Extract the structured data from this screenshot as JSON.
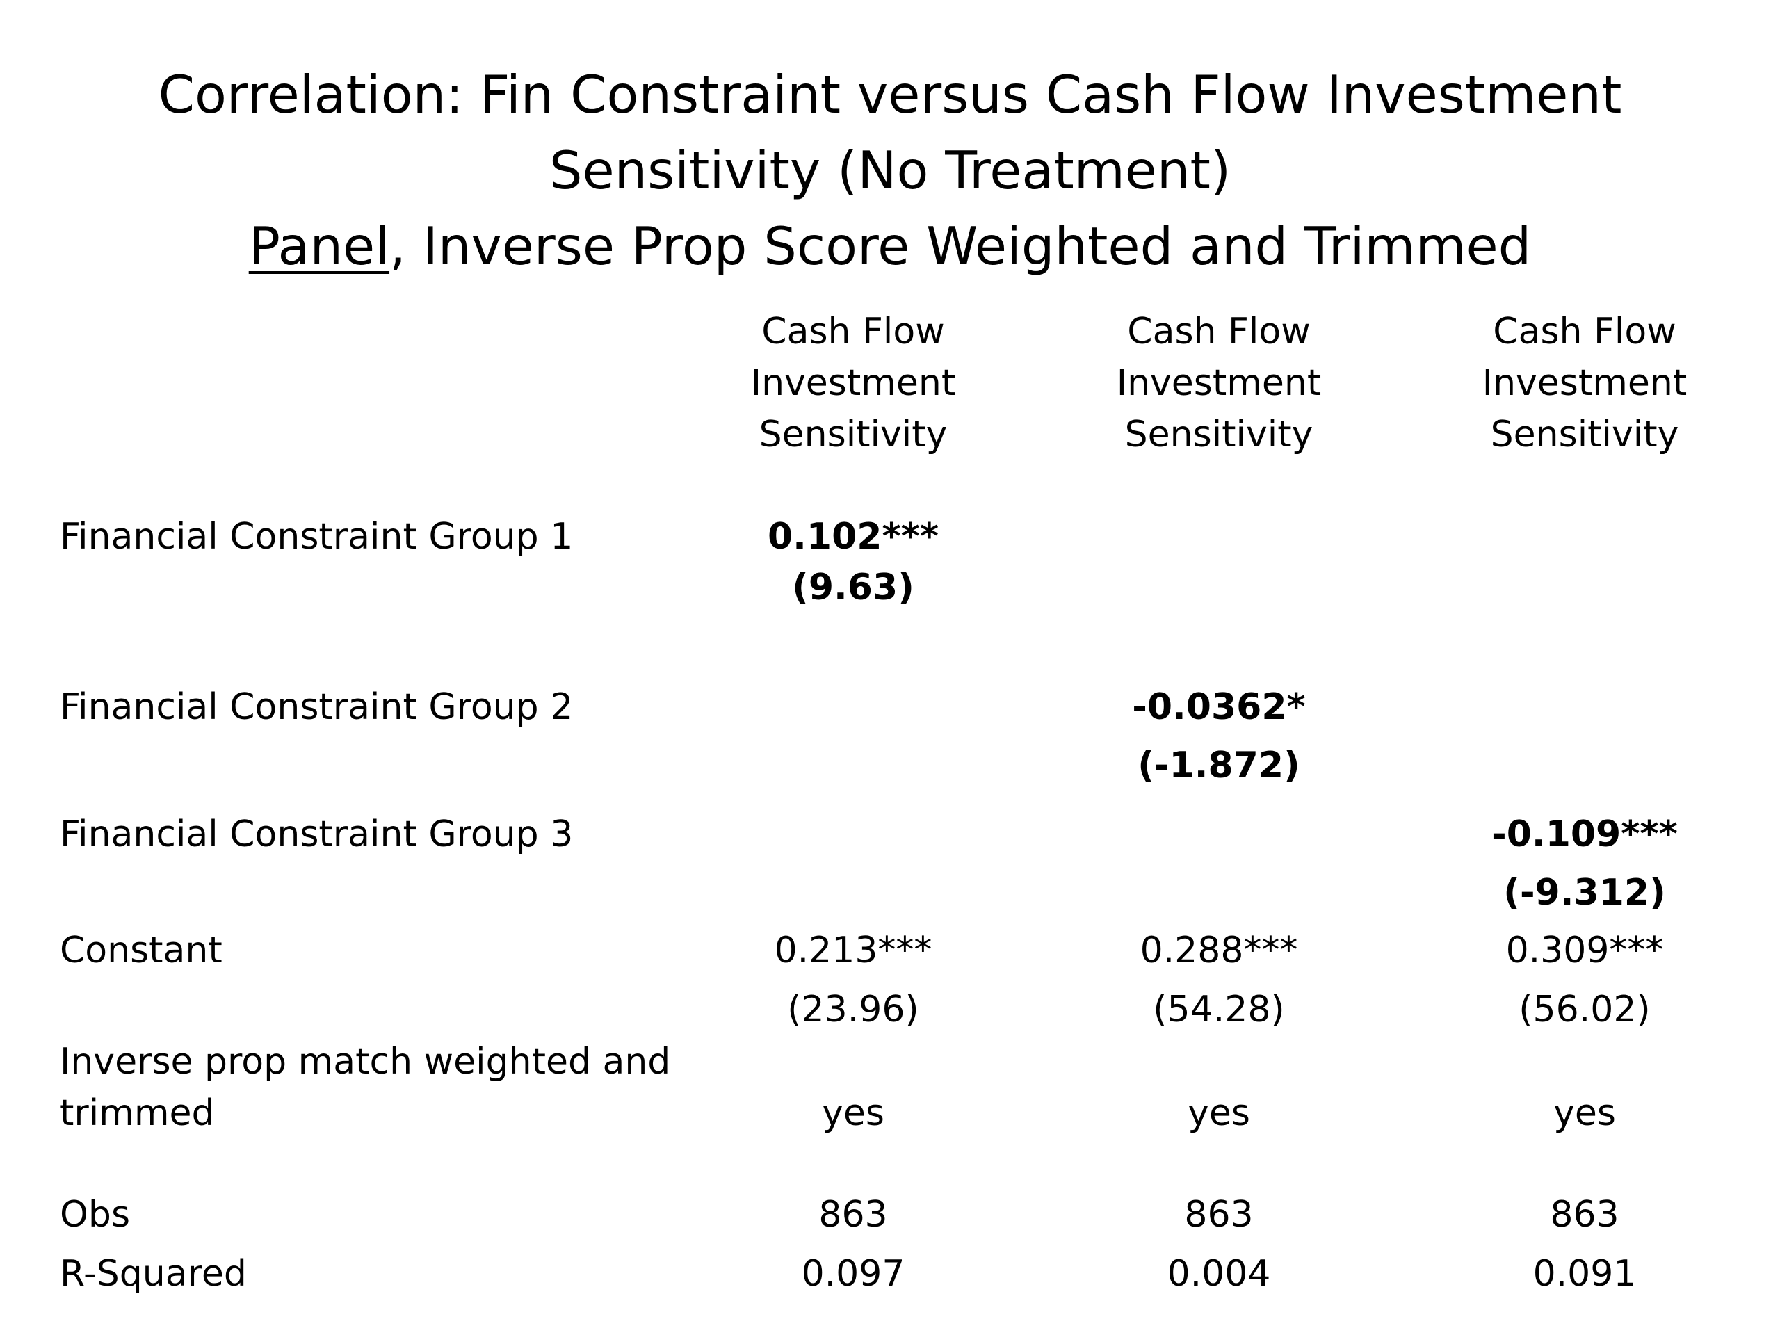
{
  "title": {
    "line1": "Correlation: Fin Constraint versus Cash Flow Investment",
    "line2": "Sensitivity (No Treatment)",
    "line3_underlined": "Panel",
    "line3_rest": ", Inverse Prop Score Weighted and Trimmed"
  },
  "columns": [
    {
      "line1": "Cash Flow",
      "line2": "Investment",
      "line3": "Sensitivity"
    },
    {
      "line1": "Cash Flow",
      "line2": "Investment",
      "line3": "Sensitivity"
    },
    {
      "line1": "Cash Flow",
      "line2": "Investment",
      "line3": "Sensitivity"
    }
  ],
  "rows": {
    "group1": {
      "label": "Financial Constraint Group 1",
      "coef": "0.102***",
      "tstat": "(9.63)"
    },
    "group2": {
      "label": "Financial Constraint Group 2",
      "coef": "-0.0362*",
      "tstat": "(-1.872)"
    },
    "group3": {
      "label": "Financial Constraint Group 3",
      "coef": "-0.109***",
      "tstat": "(-9.312)"
    },
    "constant": {
      "label": "Constant",
      "values": [
        "0.213***",
        "0.288***",
        "0.309***"
      ],
      "tstats": [
        "(23.96)",
        "(54.28)",
        "(56.02)"
      ]
    },
    "weighted": {
      "label_line1": "Inverse prop match weighted and",
      "label_line2": "trimmed",
      "values": [
        "yes",
        "yes",
        "yes"
      ]
    },
    "obs": {
      "label": "Obs",
      "values": [
        "863",
        "863",
        "863"
      ]
    },
    "rsq": {
      "label": "R-Squared",
      "values": [
        "0.097",
        "0.004",
        "0.091"
      ]
    }
  }
}
